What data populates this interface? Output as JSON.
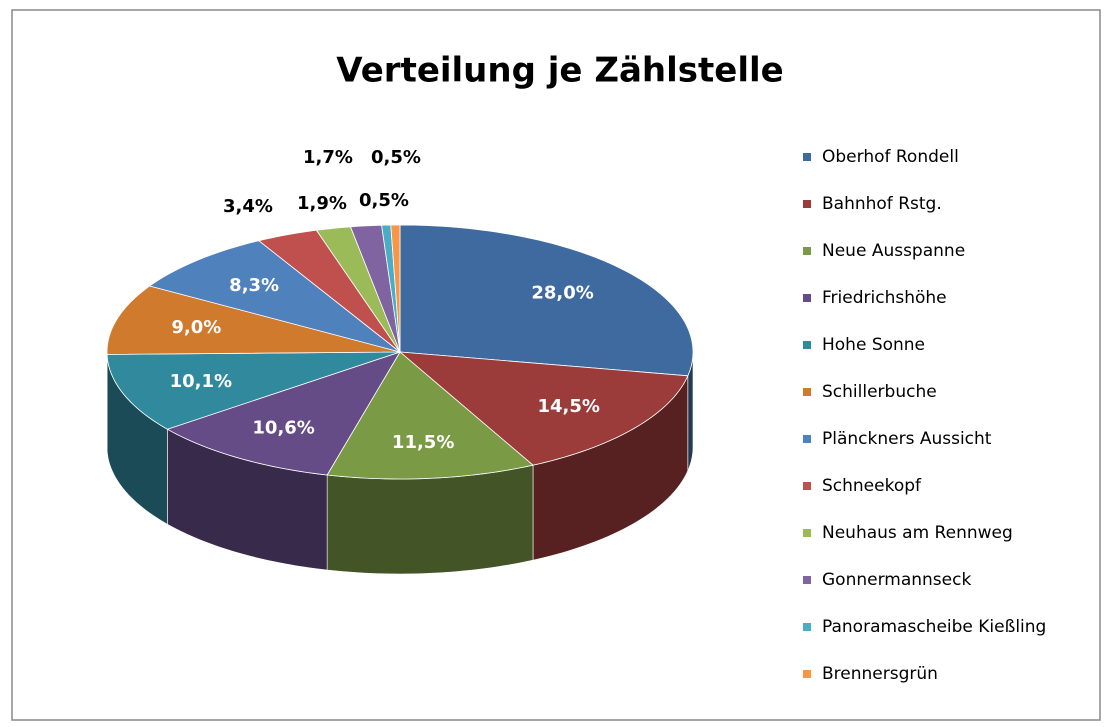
{
  "chart_data": {
    "type": "pie",
    "title": "Verteilung je Zählstelle",
    "categories": [
      "Oberhof Rondell",
      "Bahnhof Rstg.",
      "Neue Ausspanne",
      "Friedrichshöhe",
      "Hohe Sonne",
      "Schillerbuche",
      "Plänckners Aussicht",
      "Schneekopf",
      "Neuhaus am Rennweg",
      "Gonnermannseck",
      "Panoramascheibe Kießling",
      "Brennersgrün"
    ],
    "values": [
      28.0,
      14.5,
      11.5,
      10.6,
      10.1,
      9.0,
      8.3,
      3.4,
      1.9,
      1.7,
      0.5,
      0.5
    ],
    "value_labels": [
      "28,0%",
      "14,5%",
      "11,5%",
      "10,6%",
      "10,1%",
      "9,0%",
      "8,3%",
      "3,4%",
      "1,9%",
      "1,7%",
      "0,5%",
      "0,5%"
    ],
    "colors": [
      "#3e6aa0",
      "#9c3c3a",
      "#7a9a45",
      "#654c86",
      "#31899e",
      "#d07a2e",
      "#4f81bd",
      "#c0504d",
      "#9bbb59",
      "#8064a2",
      "#4bacc6",
      "#f79646"
    ],
    "legend": "right"
  }
}
